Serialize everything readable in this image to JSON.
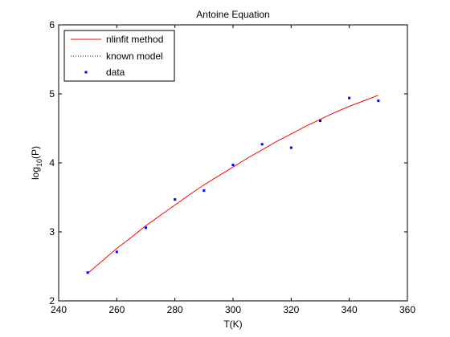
{
  "chart_data": {
    "type": "line",
    "title": "Antoine Equation",
    "xlabel": "T(K)",
    "ylabel_base": "log",
    "ylabel_sub": "10",
    "ylabel_rest": "(P)",
    "xlim": [
      240,
      360
    ],
    "ylim": [
      2,
      6
    ],
    "xticks": [
      240,
      260,
      280,
      300,
      320,
      340,
      360
    ],
    "yticks": [
      2,
      3,
      4,
      5,
      6
    ],
    "grid": false,
    "legend_position": "top-left",
    "series": [
      {
        "name": "nlinfit method",
        "style": "solid-line",
        "color": "#ff0000",
        "x": [
          250,
          255,
          260,
          265,
          270,
          275,
          280,
          285,
          290,
          295,
          300,
          305,
          310,
          315,
          320,
          325,
          330,
          335,
          340,
          345,
          350
        ],
        "y": [
          2.4,
          2.58,
          2.76,
          2.92,
          3.09,
          3.24,
          3.39,
          3.54,
          3.68,
          3.81,
          3.94,
          4.07,
          4.19,
          4.31,
          4.42,
          4.53,
          4.63,
          4.73,
          4.82,
          4.9,
          4.98
        ]
      },
      {
        "name": "known model",
        "style": "dotted-line",
        "color": "#000000",
        "x": [],
        "y": []
      },
      {
        "name": "data",
        "style": "markers",
        "color": "#0000ff",
        "x": [
          250,
          260,
          270,
          280,
          290,
          300,
          310,
          320,
          330,
          340,
          350
        ],
        "y": [
          2.41,
          2.71,
          3.06,
          3.47,
          3.6,
          3.97,
          4.27,
          4.22,
          4.61,
          4.94,
          4.9
        ]
      }
    ]
  }
}
